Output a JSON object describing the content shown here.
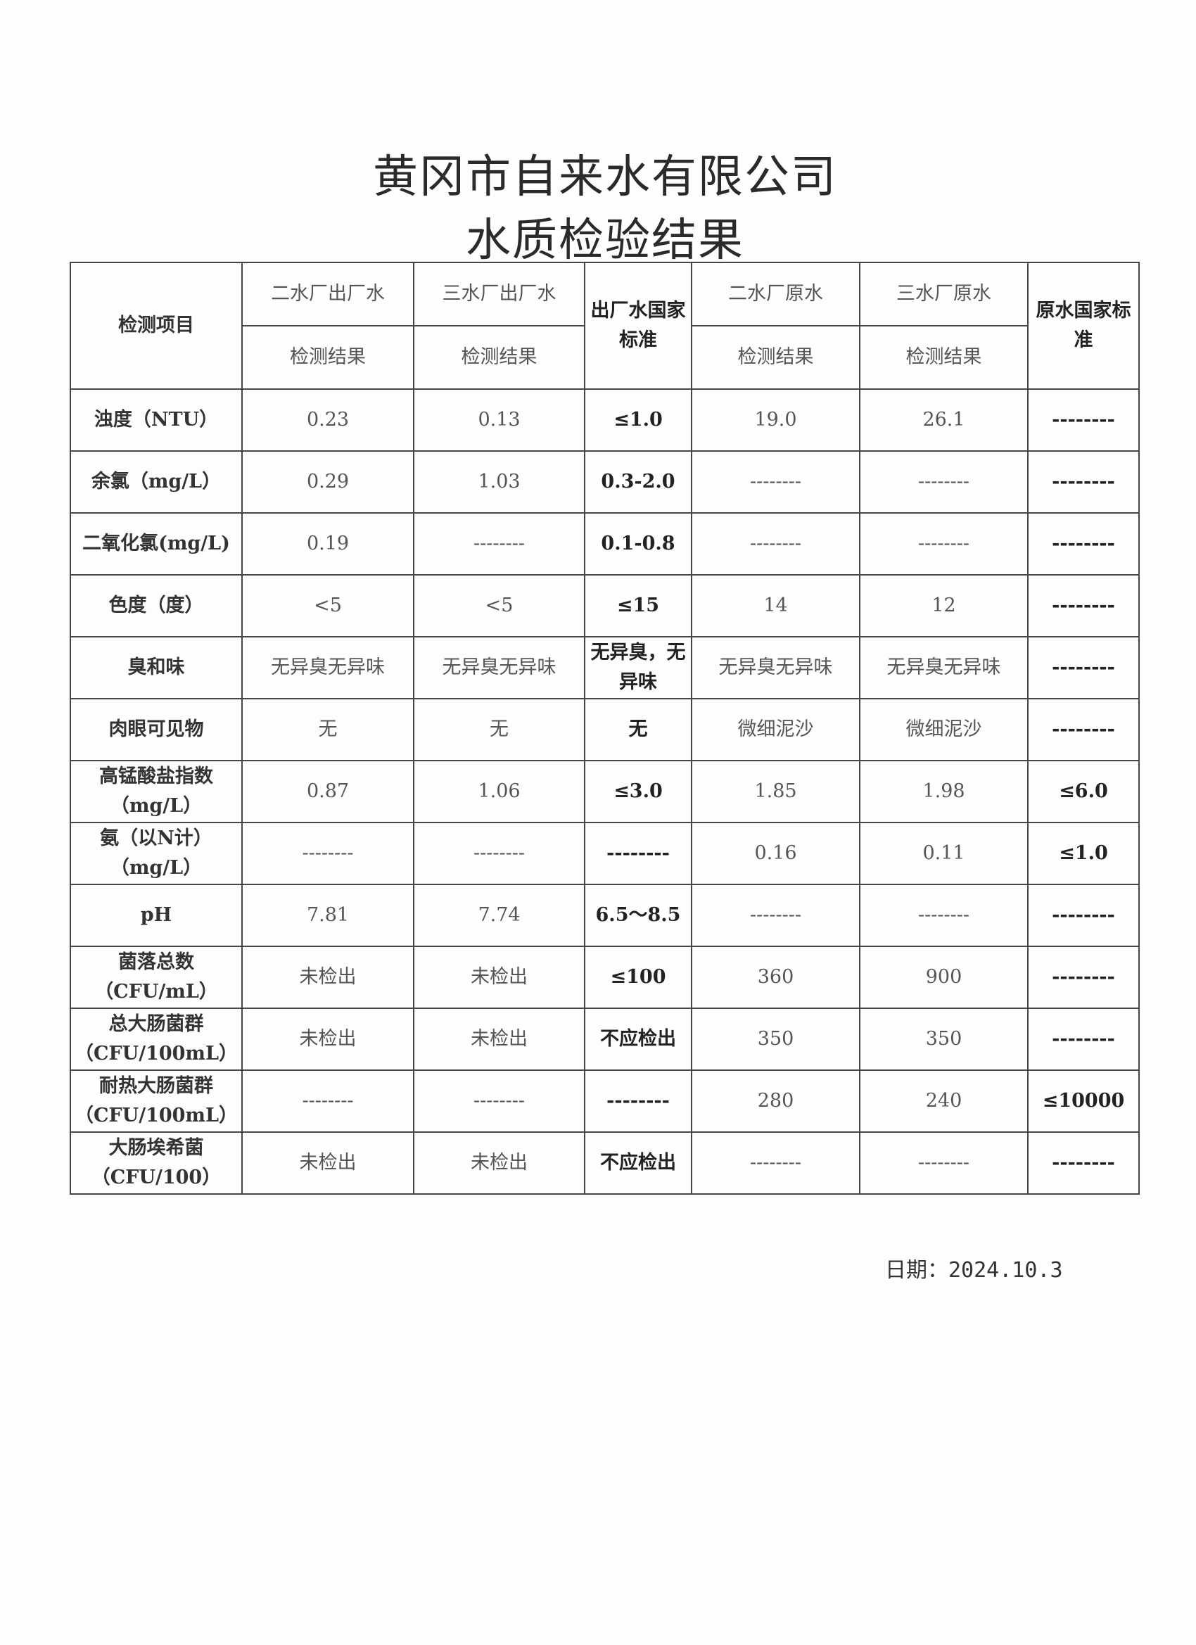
{
  "title": "黄冈市自来水有限公司",
  "subtitle": "水质检验结果",
  "table": {
    "item_header": "检测项目",
    "columns": [
      "二水厂出厂水",
      "三水厂出厂水",
      "出厂水国家标准",
      "二水厂原水",
      "三水厂原水",
      "原水国家标准"
    ],
    "sub_header": "检测结果",
    "rows": [
      {
        "item": "浊度（NTU）",
        "values": [
          "0.23",
          "0.13",
          "≤1.0",
          "19.0",
          "26.1",
          "--------"
        ]
      },
      {
        "item": "余氯（mg/L）",
        "values": [
          "0.29",
          "1.03",
          "0.3-2.0",
          "--------",
          "--------",
          "--------"
        ]
      },
      {
        "item": "二氧化氯(mg/L)",
        "values": [
          "0.19",
          "--------",
          "0.1-0.8",
          "--------",
          "--------",
          "--------"
        ]
      },
      {
        "item": "色度（度）",
        "values": [
          "<5",
          "<5",
          "≤15",
          "14",
          "12",
          "--------"
        ]
      },
      {
        "item": "臭和味",
        "values": [
          "无异臭无异味",
          "无异臭无异味",
          "无异臭，无异味",
          "无异臭无异味",
          "无异臭无异味",
          "--------"
        ]
      },
      {
        "item": "肉眼可见物",
        "values": [
          "无",
          "无",
          "无",
          "微细泥沙",
          "微细泥沙",
          "--------"
        ]
      },
      {
        "item": "高锰酸盐指数（mg/L）",
        "values": [
          "0.87",
          "1.06",
          "≤3.0",
          "1.85",
          "1.98",
          "≤6.0"
        ]
      },
      {
        "item": "氨（以N计）（mg/L）",
        "values": [
          "--------",
          "--------",
          "--------",
          "0.16",
          "0.11",
          "≤1.0"
        ]
      },
      {
        "item": "pH",
        "values": [
          "7.81",
          "7.74",
          "6.5～8.5",
          "--------",
          "--------",
          "--------"
        ]
      },
      {
        "item": "菌落总数（CFU/mL）",
        "values": [
          "未检出",
          "未检出",
          "≤100",
          "360",
          "900",
          "--------"
        ]
      },
      {
        "item": "总大肠菌群（CFU/100mL）",
        "values": [
          "未检出",
          "未检出",
          "不应检出",
          "350",
          "350",
          "--------"
        ]
      },
      {
        "item": "耐热大肠菌群（CFU/100mL）",
        "values": [
          "--------",
          "--------",
          "--------",
          "280",
          "240",
          "≤10000"
        ]
      },
      {
        "item": "大肠埃希菌（CFU/100）",
        "values": [
          "未检出",
          "未检出",
          "不应检出",
          "--------",
          "--------",
          "--------"
        ]
      }
    ]
  },
  "date": "日期：2024.10.3"
}
